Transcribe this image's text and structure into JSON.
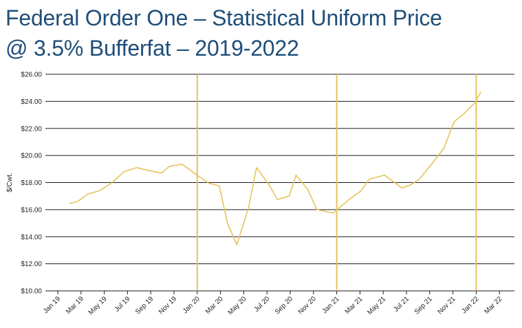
{
  "title_lines": [
    "Federal Order One – Statistical Uniform Price",
    "@ 3.5% Bufferfat – 2019-2022"
  ],
  "chart_data": {
    "type": "line",
    "title": "Federal Order One – Statistical Uniform Price @ 3.5% Bufferfat – 2019-2022",
    "ylabel": "$/Cwt.",
    "xlabel": "",
    "ylim": [
      10,
      26
    ],
    "y_ticks": [
      {
        "value": 10,
        "label": "$10.00"
      },
      {
        "value": 12,
        "label": "$12.00"
      },
      {
        "value": 14,
        "label": "$14.00"
      },
      {
        "value": 16,
        "label": "$16.00"
      },
      {
        "value": 18,
        "label": "$18.00"
      },
      {
        "value": 20,
        "label": "$20.00"
      },
      {
        "value": 22,
        "label": "$22.00"
      },
      {
        "value": 24,
        "label": "$24.00"
      },
      {
        "value": 26,
        "label": "$26.00"
      }
    ],
    "x_ticks": [
      {
        "month": 0,
        "label": "Jan 19"
      },
      {
        "month": 2,
        "label": "Mar 19"
      },
      {
        "month": 4,
        "label": "May 19"
      },
      {
        "month": 6,
        "label": "Jul 19"
      },
      {
        "month": 8,
        "label": "Sep 19"
      },
      {
        "month": 10,
        "label": "Nov 19"
      },
      {
        "month": 12,
        "label": "Jan 20"
      },
      {
        "month": 14,
        "label": "Mar 20"
      },
      {
        "month": 16,
        "label": "May 20"
      },
      {
        "month": 18,
        "label": "Jul 20"
      },
      {
        "month": 20,
        "label": "Sep 20"
      },
      {
        "month": 22,
        "label": "Nov 20"
      },
      {
        "month": 24,
        "label": "Jan 21"
      },
      {
        "month": 26,
        "label": "Mar 21"
      },
      {
        "month": 28,
        "label": "May 21"
      },
      {
        "month": 30,
        "label": "Jul 21"
      },
      {
        "month": 32,
        "label": "Sep 21"
      },
      {
        "month": 34,
        "label": "Nov 21"
      },
      {
        "month": 36,
        "label": "Jan 22"
      },
      {
        "month": 38,
        "label": "Mar 22"
      }
    ],
    "year_markers": [
      12,
      24,
      36
    ],
    "grid": true,
    "series": [
      {
        "color": "#e6c35c",
        "points": [
          {
            "month": 1.0,
            "value": 16.45
          },
          {
            "month": 1.7,
            "value": 16.6
          },
          {
            "month": 2.6,
            "value": 17.15
          },
          {
            "month": 3.6,
            "value": 17.4
          },
          {
            "month": 4.6,
            "value": 17.95
          },
          {
            "month": 5.7,
            "value": 18.8
          },
          {
            "month": 6.8,
            "value": 19.1
          },
          {
            "month": 7.8,
            "value": 18.9
          },
          {
            "month": 8.9,
            "value": 18.7
          },
          {
            "month": 9.6,
            "value": 19.2
          },
          {
            "month": 10.7,
            "value": 19.35
          },
          {
            "month": 11.9,
            "value": 18.6
          },
          {
            "month": 13.0,
            "value": 17.95
          },
          {
            "month": 13.9,
            "value": 17.75
          },
          {
            "month": 14.6,
            "value": 15.0
          },
          {
            "month": 15.4,
            "value": 13.4
          },
          {
            "month": 16.4,
            "value": 16.1
          },
          {
            "month": 17.1,
            "value": 19.1
          },
          {
            "month": 18.2,
            "value": 17.8
          },
          {
            "month": 18.9,
            "value": 16.75
          },
          {
            "month": 19.9,
            "value": 17.0
          },
          {
            "month": 20.5,
            "value": 18.55
          },
          {
            "month": 21.5,
            "value": 17.5
          },
          {
            "month": 22.3,
            "value": 16.0
          },
          {
            "month": 23.7,
            "value": 15.75
          },
          {
            "month": 25.0,
            "value": 16.7
          },
          {
            "month": 26.1,
            "value": 17.4
          },
          {
            "month": 26.8,
            "value": 18.25
          },
          {
            "month": 28.1,
            "value": 18.55
          },
          {
            "month": 29.0,
            "value": 18.0
          },
          {
            "month": 29.6,
            "value": 17.6
          },
          {
            "month": 30.4,
            "value": 17.85
          },
          {
            "month": 31.1,
            "value": 18.25
          },
          {
            "month": 32.2,
            "value": 19.4
          },
          {
            "month": 33.2,
            "value": 20.5
          },
          {
            "month": 34.1,
            "value": 22.5
          },
          {
            "month": 34.9,
            "value": 23.05
          },
          {
            "month": 35.9,
            "value": 23.9
          },
          {
            "month": 36.4,
            "value": 24.7
          }
        ]
      }
    ]
  }
}
